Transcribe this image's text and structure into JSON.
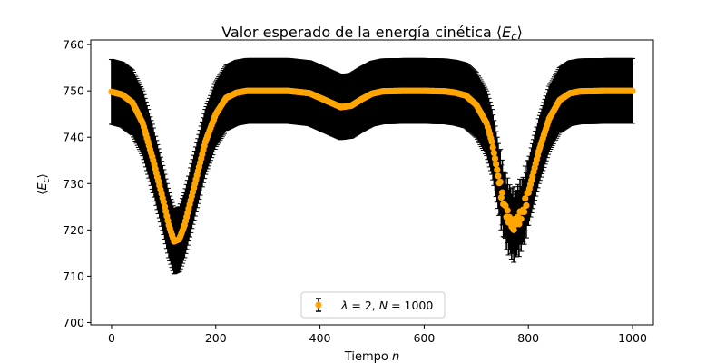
{
  "chart_data": {
    "type": "scatter",
    "title": "Valor esperado de la energía cinética ⟨E_c⟩",
    "xlabel": "Tiempo n",
    "ylabel": "⟨E_c⟩",
    "xlim": [
      -40,
      1040
    ],
    "ylim": [
      699.5,
      761
    ],
    "xticks": [
      0,
      200,
      400,
      600,
      800,
      1000
    ],
    "yticks": [
      700,
      710,
      720,
      730,
      740,
      750,
      760
    ],
    "grid": false,
    "legend_position": "lower-center",
    "legend": "λ = 2, N = 1000",
    "marker_color": "#ffa500",
    "errorbar_color": "#000000",
    "error_halfwidth": 7,
    "series": [
      {
        "name": "λ = 2, N = 1000",
        "x": [
          0,
          20,
          40,
          60,
          80,
          100,
          110,
          120,
          130,
          140,
          160,
          180,
          200,
          220,
          240,
          260,
          300,
          340,
          380,
          420,
          440,
          460,
          480,
          500,
          520,
          560,
          600,
          640,
          660,
          680,
          700,
          720,
          730,
          740,
          750,
          760,
          770,
          775,
          780,
          790,
          800,
          820,
          840,
          860,
          880,
          900,
          950,
          1000
        ],
        "y": [
          749.8,
          749.2,
          747.5,
          743,
          735,
          726,
          721,
          717.5,
          718,
          721,
          730,
          739,
          745,
          748.5,
          749.6,
          750,
          750,
          750,
          749.5,
          747.5,
          746.5,
          746.8,
          748.2,
          749.4,
          749.9,
          750,
          750,
          749.9,
          749.6,
          749,
          747,
          743,
          739,
          733,
          727,
          723,
          721,
          721.5,
          722,
          724,
          728,
          737,
          744,
          748,
          749.5,
          749.9,
          750,
          750
        ]
      }
    ]
  }
}
